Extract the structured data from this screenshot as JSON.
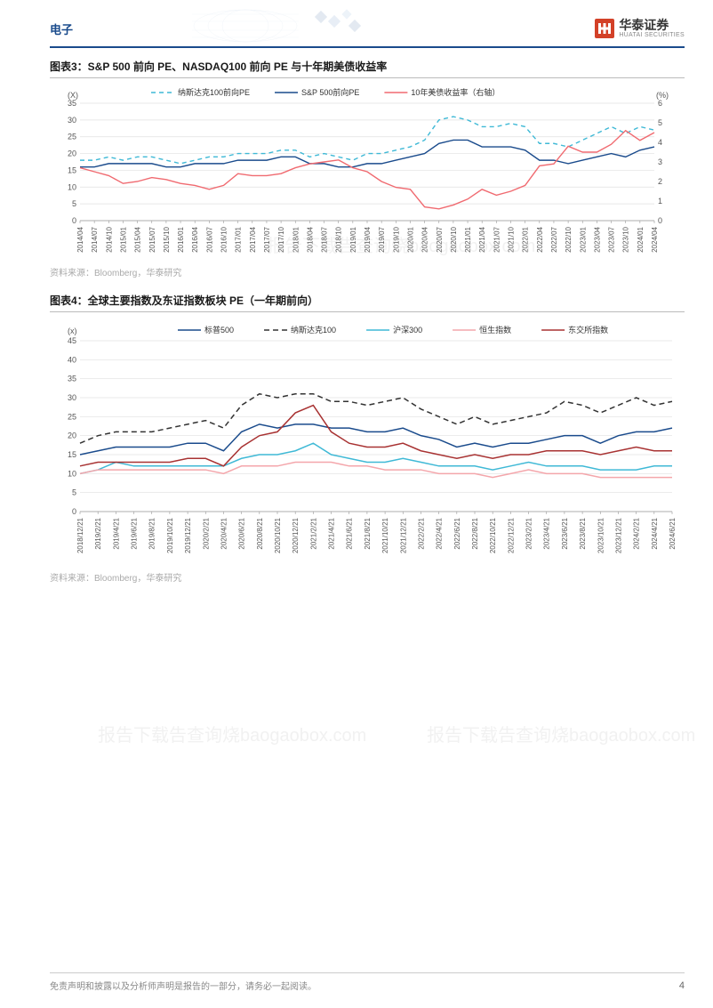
{
  "header": {
    "section_label": "电子",
    "company_name": "华泰证券",
    "company_name_en": "HUATAI SECURITIES",
    "logo_color": "#d34128"
  },
  "chart3": {
    "title": "图表3：S&P 500 前向 PE、NASDAQ100 前向 PE 与十年期美债收益率",
    "type": "line",
    "y_left_label": "(X)",
    "y_right_label": "(%)",
    "y_left_min": 0,
    "y_left_max": 35,
    "y_left_step": 5,
    "y_right_min": 0,
    "y_right_max": 6,
    "y_right_step": 1,
    "x_labels": [
      "2014/04",
      "2014/07",
      "2014/10",
      "2015/01",
      "2015/04",
      "2015/07",
      "2015/10",
      "2016/01",
      "2016/04",
      "2016/07",
      "2016/10",
      "2017/01",
      "2017/04",
      "2017/07",
      "2017/10",
      "2018/01",
      "2018/04",
      "2018/07",
      "2018/10",
      "2019/01",
      "2019/04",
      "2019/07",
      "2019/10",
      "2020/01",
      "2020/04",
      "2020/07",
      "2020/10",
      "2021/01",
      "2021/04",
      "2021/07",
      "2021/10",
      "2022/01",
      "2022/04",
      "2022/07",
      "2022/10",
      "2023/01",
      "2023/04",
      "2023/07",
      "2023/10",
      "2024/01",
      "2024/04"
    ],
    "legend": [
      {
        "label": "纳斯达克100前向PE",
        "color": "#3fb9d6",
        "dash": "5,4",
        "axis": "left"
      },
      {
        "label": "S&P 500前向PE",
        "color": "#1a4b8c",
        "dash": "",
        "axis": "left"
      },
      {
        "label": "10年美债收益率（右轴）",
        "color": "#f06a70",
        "dash": "",
        "axis": "right"
      }
    ],
    "series": {
      "nasdaq": [
        18,
        18,
        19,
        18,
        19,
        19,
        18,
        17,
        18,
        19,
        19,
        20,
        20,
        20,
        21,
        21,
        19,
        20,
        19,
        18,
        20,
        20,
        21,
        22,
        24,
        30,
        31,
        30,
        28,
        28,
        29,
        28,
        23,
        23,
        22,
        24,
        26,
        28,
        26,
        28,
        27
      ],
      "sp500": [
        16,
        16,
        17,
        17,
        17,
        17,
        16,
        16,
        17,
        17,
        17,
        18,
        18,
        18,
        19,
        19,
        17,
        17,
        16,
        16,
        17,
        17,
        18,
        19,
        20,
        23,
        24,
        24,
        22,
        22,
        22,
        21,
        18,
        18,
        17,
        18,
        19,
        20,
        19,
        21,
        22
      ],
      "yield": [
        2.7,
        2.5,
        2.3,
        1.9,
        2.0,
        2.2,
        2.1,
        1.9,
        1.8,
        1.6,
        1.8,
        2.4,
        2.3,
        2.3,
        2.4,
        2.7,
        2.9,
        3.0,
        3.1,
        2.7,
        2.5,
        2.0,
        1.7,
        1.6,
        0.7,
        0.6,
        0.8,
        1.1,
        1.6,
        1.3,
        1.5,
        1.8,
        2.8,
        2.9,
        3.8,
        3.5,
        3.5,
        3.9,
        4.6,
        4.1,
        4.5
      ]
    },
    "source": "资料来源：Bloomberg，华泰研究",
    "grid_color": "#e0e0e0",
    "axis_color": "#999999",
    "bg_color": "#ffffff",
    "label_fontsize": 9
  },
  "chart4": {
    "title": "图表4：全球主要指数及东证指数板块 PE（一年期前向）",
    "type": "line",
    "y_label": "(x)",
    "y_min": 0,
    "y_max": 45,
    "y_step": 5,
    "x_labels": [
      "2018/12/21",
      "2019/2/21",
      "2019/4/21",
      "2019/6/21",
      "2019/8/21",
      "2019/10/21",
      "2019/12/21",
      "2020/2/21",
      "2020/4/21",
      "2020/6/21",
      "2020/8/21",
      "2020/10/21",
      "2020/12/21",
      "2021/2/21",
      "2021/4/21",
      "2021/6/21",
      "2021/8/21",
      "2021/10/21",
      "2021/12/21",
      "2022/2/21",
      "2022/4/21",
      "2022/6/21",
      "2022/8/21",
      "2022/10/21",
      "2022/12/21",
      "2023/2/21",
      "2023/4/21",
      "2023/6/21",
      "2023/8/21",
      "2023/10/21",
      "2023/12/21",
      "2024/2/21",
      "2024/4/21",
      "2024/6/21"
    ],
    "legend": [
      {
        "label": "标普500",
        "color": "#1a4b8c",
        "dash": ""
      },
      {
        "label": "纳斯达克100",
        "color": "#333333",
        "dash": "6,4"
      },
      {
        "label": "沪深300",
        "color": "#3fb9d6",
        "dash": ""
      },
      {
        "label": "恒生指数",
        "color": "#f4a6ab",
        "dash": ""
      },
      {
        "label": "东交所指数",
        "color": "#a83232",
        "dash": ""
      }
    ],
    "series": {
      "sp500": [
        15,
        16,
        17,
        17,
        17,
        17,
        18,
        18,
        16,
        21,
        23,
        22,
        23,
        23,
        22,
        22,
        21,
        21,
        22,
        20,
        19,
        17,
        18,
        17,
        18,
        18,
        19,
        20,
        20,
        18,
        20,
        21,
        21,
        22
      ],
      "nasdaq": [
        18,
        20,
        21,
        21,
        21,
        22,
        23,
        24,
        22,
        28,
        31,
        30,
        31,
        31,
        29,
        29,
        28,
        29,
        30,
        27,
        25,
        23,
        25,
        23,
        24,
        25,
        26,
        29,
        28,
        26,
        28,
        30,
        28,
        29
      ],
      "csi300": [
        10,
        11,
        13,
        12,
        12,
        12,
        12,
        12,
        12,
        14,
        15,
        15,
        16,
        18,
        15,
        14,
        13,
        13,
        14,
        13,
        12,
        12,
        12,
        11,
        12,
        13,
        12,
        12,
        12,
        11,
        11,
        11,
        12,
        12
      ],
      "hsi": [
        10,
        11,
        11,
        11,
        11,
        11,
        11,
        11,
        10,
        12,
        12,
        12,
        13,
        13,
        13,
        12,
        12,
        11,
        11,
        11,
        10,
        10,
        10,
        9,
        10,
        11,
        10,
        10,
        10,
        9,
        9,
        9,
        9,
        9
      ],
      "topix": [
        12,
        13,
        13,
        13,
        13,
        13,
        14,
        14,
        12,
        17,
        20,
        21,
        26,
        28,
        21,
        18,
        17,
        17,
        18,
        16,
        15,
        14,
        15,
        14,
        15,
        15,
        16,
        16,
        16,
        15,
        16,
        17,
        16,
        16
      ]
    },
    "source": "资料来源：Bloomberg，华泰研究",
    "grid_color": "#e0e0e0",
    "axis_color": "#999999",
    "bg_color": "#ffffff",
    "label_fontsize": 9
  },
  "footer": {
    "disclaimer": "免责声明和披露以及分析师声明是报告的一部分，请务必一起阅读。",
    "page_number": "4"
  },
  "watermark": "报告下载告查询烧baogaobox.com"
}
